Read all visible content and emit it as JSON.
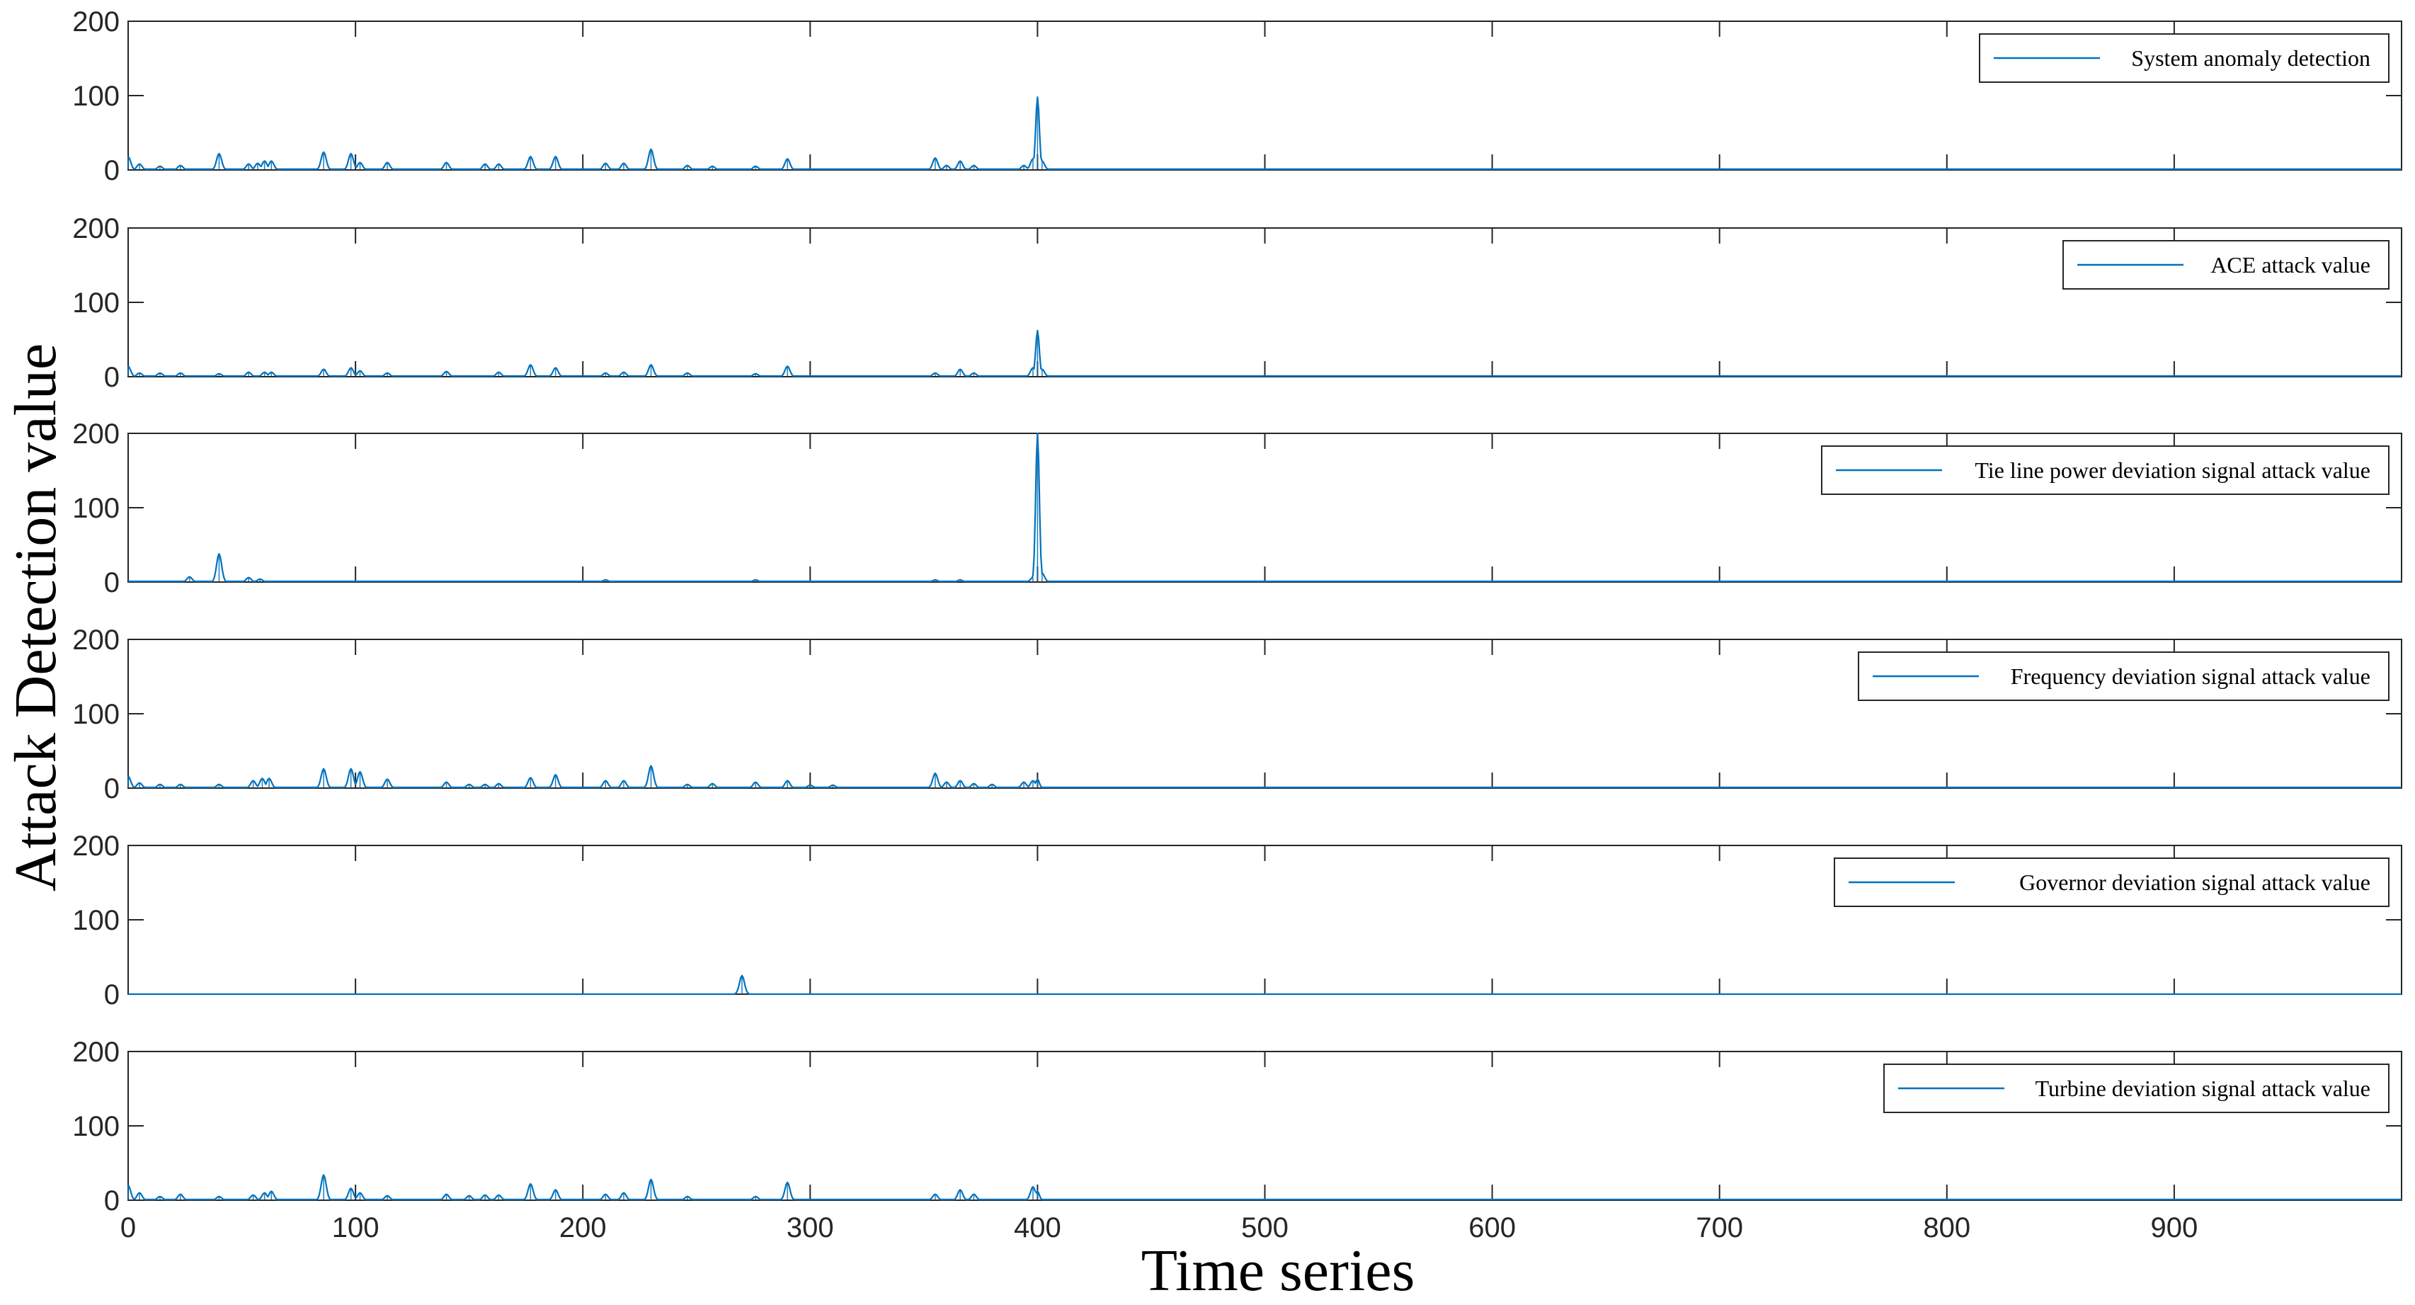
{
  "figure": {
    "xlabel": "Time series",
    "ylabel": "Attack Detection value",
    "line_color": "#0072BD"
  },
  "chart_data": [
    {
      "type": "line",
      "legend": "System anomaly detection",
      "legend_position": "top-right",
      "xlim": [
        0,
        1000
      ],
      "ylim": [
        0,
        200
      ],
      "yticks": [
        "0",
        "100",
        "200"
      ],
      "xticks": [],
      "baseline": 1,
      "peaks": [
        [
          0,
          18
        ],
        [
          5,
          8
        ],
        [
          14,
          5
        ],
        [
          23,
          6
        ],
        [
          40,
          22
        ],
        [
          53,
          8
        ],
        [
          57,
          9
        ],
        [
          60,
          12
        ],
        [
          63,
          12
        ],
        [
          86,
          24
        ],
        [
          98,
          22
        ],
        [
          102,
          10
        ],
        [
          114,
          10
        ],
        [
          140,
          10
        ],
        [
          157,
          8
        ],
        [
          163,
          8
        ],
        [
          177,
          18
        ],
        [
          188,
          18
        ],
        [
          210,
          9
        ],
        [
          218,
          9
        ],
        [
          230,
          28
        ],
        [
          246,
          6
        ],
        [
          257,
          5
        ],
        [
          276,
          5
        ],
        [
          290,
          15
        ],
        [
          355,
          16
        ],
        [
          360,
          6
        ],
        [
          366,
          12
        ],
        [
          372,
          6
        ],
        [
          394,
          6
        ],
        [
          398,
          15
        ],
        [
          400,
          98
        ],
        [
          402,
          12
        ]
      ]
    },
    {
      "type": "line",
      "legend": "ACE attack value",
      "legend_position": "top-right",
      "xlim": [
        0,
        1000
      ],
      "ylim": [
        0,
        200
      ],
      "yticks": [
        "0",
        "100",
        "200"
      ],
      "xticks": [],
      "baseline": 1,
      "peaks": [
        [
          0,
          14
        ],
        [
          5,
          5
        ],
        [
          14,
          5
        ],
        [
          23,
          5
        ],
        [
          40,
          4
        ],
        [
          53,
          6
        ],
        [
          60,
          6
        ],
        [
          63,
          6
        ],
        [
          86,
          10
        ],
        [
          98,
          12
        ],
        [
          102,
          8
        ],
        [
          114,
          5
        ],
        [
          140,
          7
        ],
        [
          163,
          6
        ],
        [
          177,
          16
        ],
        [
          188,
          12
        ],
        [
          210,
          5
        ],
        [
          218,
          6
        ],
        [
          230,
          16
        ],
        [
          246,
          5
        ],
        [
          276,
          4
        ],
        [
          290,
          14
        ],
        [
          355,
          5
        ],
        [
          366,
          10
        ],
        [
          372,
          5
        ],
        [
          398,
          12
        ],
        [
          400,
          62
        ],
        [
          402,
          10
        ]
      ]
    },
    {
      "type": "line",
      "legend": "Tie line power deviation signal attack value",
      "legend_position": "top-right",
      "xlim": [
        0,
        1000
      ],
      "ylim": [
        0,
        200
      ],
      "yticks": [
        "0",
        "100",
        "200"
      ],
      "xticks": [],
      "baseline": 1,
      "peaks": [
        [
          27,
          7
        ],
        [
          40,
          38
        ],
        [
          53,
          6
        ],
        [
          58,
          4
        ],
        [
          210,
          3
        ],
        [
          276,
          3
        ],
        [
          355,
          3
        ],
        [
          366,
          3
        ],
        [
          398,
          6
        ],
        [
          400,
          200
        ],
        [
          402,
          12
        ]
      ]
    },
    {
      "type": "line",
      "legend": "Frequency deviation signal attack value",
      "legend_position": "top-right",
      "xlim": [
        0,
        1000
      ],
      "ylim": [
        0,
        200
      ],
      "yticks": [
        "0",
        "100",
        "200"
      ],
      "xticks": [],
      "baseline": 1,
      "peaks": [
        [
          0,
          16
        ],
        [
          5,
          7
        ],
        [
          14,
          5
        ],
        [
          23,
          5
        ],
        [
          40,
          5
        ],
        [
          55,
          10
        ],
        [
          59,
          13
        ],
        [
          62,
          13
        ],
        [
          86,
          26
        ],
        [
          98,
          26
        ],
        [
          102,
          22
        ],
        [
          114,
          12
        ],
        [
          140,
          8
        ],
        [
          150,
          5
        ],
        [
          157,
          5
        ],
        [
          163,
          6
        ],
        [
          177,
          14
        ],
        [
          188,
          18
        ],
        [
          210,
          10
        ],
        [
          218,
          10
        ],
        [
          230,
          30
        ],
        [
          246,
          5
        ],
        [
          257,
          6
        ],
        [
          276,
          8
        ],
        [
          290,
          10
        ],
        [
          300,
          4
        ],
        [
          310,
          4
        ],
        [
          355,
          20
        ],
        [
          360,
          8
        ],
        [
          366,
          10
        ],
        [
          372,
          6
        ],
        [
          380,
          5
        ],
        [
          394,
          8
        ],
        [
          398,
          10
        ],
        [
          400,
          12
        ]
      ]
    },
    {
      "type": "line",
      "legend": "Governor deviation signal attack value",
      "legend_position": "top-right",
      "xlim": [
        0,
        1000
      ],
      "ylim": [
        0,
        200
      ],
      "yticks": [
        "0",
        "100",
        "200"
      ],
      "xticks": [],
      "baseline": 0,
      "peaks": [
        [
          270,
          25
        ]
      ]
    },
    {
      "type": "line",
      "legend": "Turbine deviation signal attack value",
      "legend_position": "top-right",
      "xlim": [
        0,
        1000
      ],
      "ylim": [
        0,
        200
      ],
      "yticks": [
        "0",
        "100",
        "200"
      ],
      "xticks": [
        "0",
        "100",
        "200",
        "300",
        "400",
        "500",
        "600",
        "700",
        "800",
        "900"
      ],
      "baseline": 1,
      "peaks": [
        [
          0,
          20
        ],
        [
          5,
          10
        ],
        [
          14,
          5
        ],
        [
          23,
          8
        ],
        [
          40,
          5
        ],
        [
          55,
          7
        ],
        [
          60,
          10
        ],
        [
          63,
          12
        ],
        [
          86,
          34
        ],
        [
          98,
          16
        ],
        [
          102,
          10
        ],
        [
          114,
          6
        ],
        [
          140,
          8
        ],
        [
          150,
          6
        ],
        [
          157,
          7
        ],
        [
          163,
          7
        ],
        [
          177,
          22
        ],
        [
          188,
          14
        ],
        [
          210,
          8
        ],
        [
          218,
          10
        ],
        [
          230,
          28
        ],
        [
          246,
          5
        ],
        [
          276,
          5
        ],
        [
          290,
          24
        ],
        [
          355,
          8
        ],
        [
          366,
          14
        ],
        [
          372,
          8
        ],
        [
          398,
          18
        ],
        [
          400,
          12
        ]
      ]
    }
  ]
}
